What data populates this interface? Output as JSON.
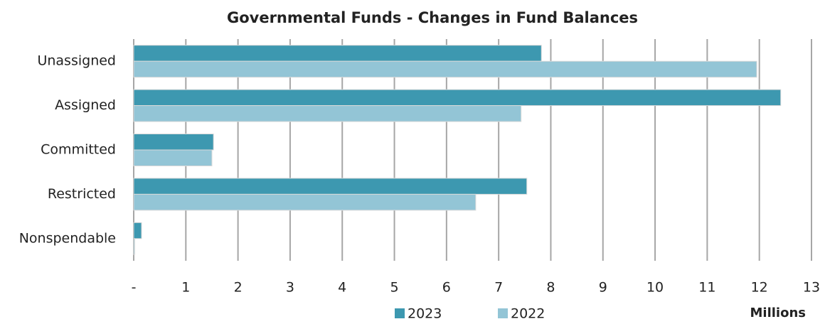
{
  "chart_data": {
    "type": "bar",
    "orientation": "horizontal",
    "title": "Governmental Funds - Changes in Fund Balances",
    "x_label": "Millions",
    "categories": [
      "Unassigned",
      "Assigned",
      "Committed",
      "Restricted",
      "Nonspendable"
    ],
    "series": [
      {
        "name": "2023",
        "color": "#3d98b0",
        "values": [
          7.82,
          12.41,
          1.53,
          7.54,
          0.15
        ]
      },
      {
        "name": "2022",
        "color": "#93c5d6",
        "values": [
          11.95,
          7.43,
          1.5,
          6.56,
          0.02
        ]
      }
    ],
    "xlim": [
      0,
      13
    ],
    "xticks": [
      {
        "value": 0,
        "label": "-"
      },
      1,
      2,
      3,
      4,
      5,
      6,
      7,
      8,
      9,
      10,
      11,
      12,
      13
    ],
    "grid": true,
    "legend": "bottom"
  }
}
